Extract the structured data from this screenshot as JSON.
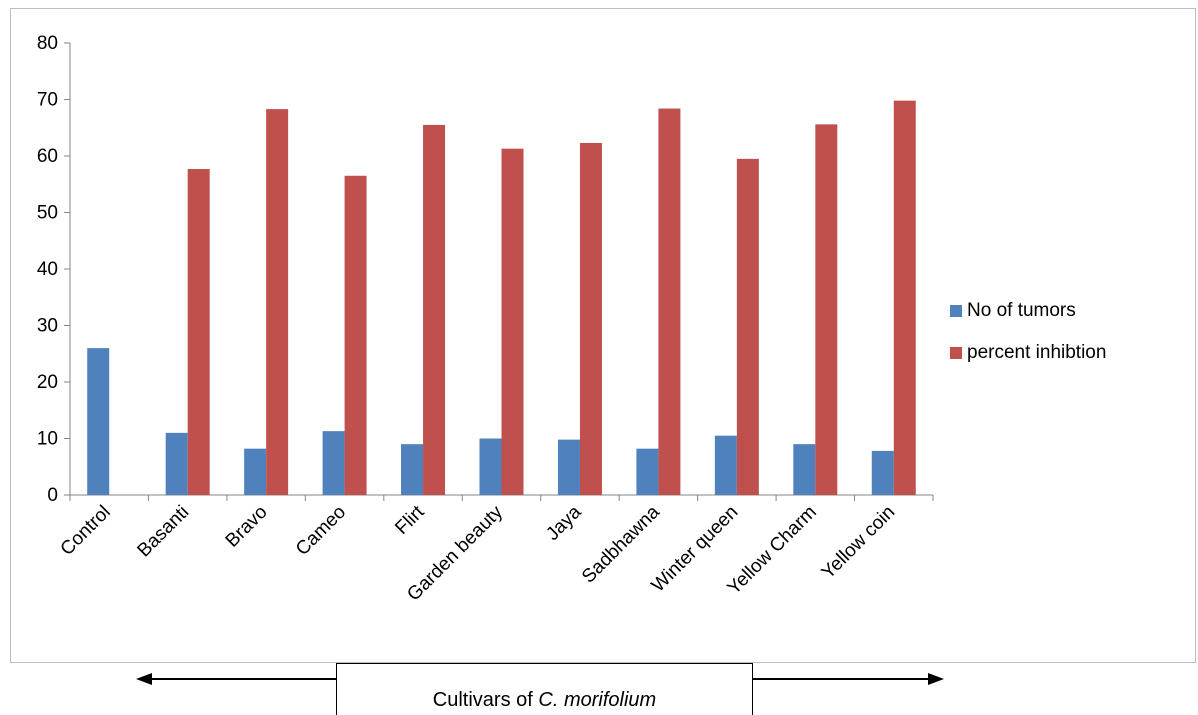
{
  "chart_data": {
    "type": "bar",
    "title": "",
    "xlabel": "",
    "ylabel": "",
    "ylim": [
      0,
      80
    ],
    "yticks": [
      0,
      10,
      20,
      30,
      40,
      50,
      60,
      70,
      80
    ],
    "categories": [
      "Control",
      "Basanti",
      "Bravo",
      "Cameo",
      "Flirt",
      "Garden beauty",
      "Jaya",
      "Sadbhawna",
      "Winter queen",
      "Yellow Charm",
      "Yellow coin"
    ],
    "series": [
      {
        "name": "No of tumors",
        "color": "#4f81bd",
        "values": [
          26,
          11,
          8.2,
          11.3,
          9,
          10,
          9.8,
          8.2,
          10.5,
          9,
          7.8
        ]
      },
      {
        "name": "percent inhibtion",
        "color": "#c0504d",
        "values": [
          0,
          57.7,
          68.3,
          56.5,
          65.5,
          61.3,
          62.3,
          68.4,
          59.5,
          65.6,
          69.8
        ]
      }
    ],
    "legend_position": "right",
    "grid": false
  },
  "caption": {
    "prefix": "Cultivars of ",
    "species": "C. morifolium"
  }
}
